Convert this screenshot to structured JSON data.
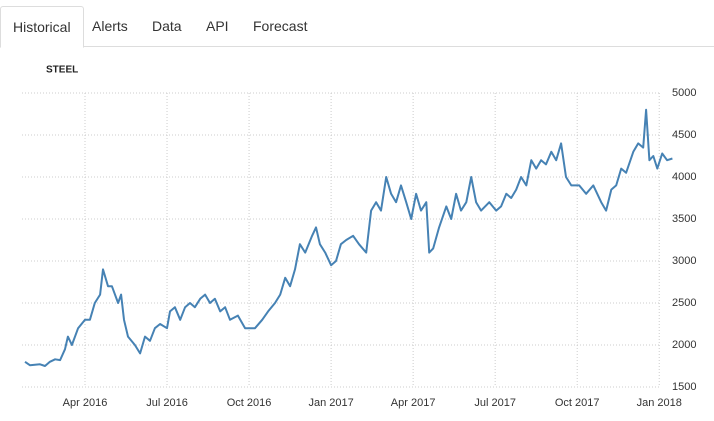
{
  "tabs": [
    "Historical",
    "Alerts",
    "Data",
    "API",
    "Forecast"
  ],
  "chart_data": {
    "type": "line",
    "title": "STEEL",
    "x": [
      2016.067,
      2016.082,
      2016.113,
      2016.128,
      2016.143,
      2016.159,
      2016.174,
      2016.189,
      2016.198,
      2016.21,
      2016.229,
      2016.25,
      2016.265,
      2016.28,
      2016.296,
      2016.305,
      2016.32,
      2016.332,
      2016.351,
      2016.36,
      2016.369,
      2016.381,
      2016.402,
      2016.418,
      2016.433,
      2016.448,
      2016.463,
      2016.479,
      2016.5,
      2016.509,
      2016.524,
      2016.54,
      2016.555,
      2016.57,
      2016.585,
      2016.601,
      2016.616,
      2016.631,
      2016.646,
      2016.662,
      2016.677,
      2016.692,
      2016.716,
      2016.738,
      2016.768,
      2016.79,
      2016.808,
      2016.829,
      2016.845,
      2016.86,
      2016.875,
      2016.89,
      2016.905,
      2016.921,
      2016.942,
      2016.954,
      2016.966,
      2016.982,
      2017.0,
      2017.015,
      2017.03,
      2017.046,
      2017.067,
      2017.085,
      2017.107,
      2017.122,
      2017.137,
      2017.152,
      2017.168,
      2017.183,
      2017.198,
      2017.213,
      2017.229,
      2017.244,
      2017.259,
      2017.274,
      2017.29,
      2017.299,
      2017.311,
      2017.329,
      2017.351,
      2017.366,
      2017.381,
      2017.396,
      2017.412,
      2017.427,
      2017.442,
      2017.457,
      2017.482,
      2017.503,
      2017.518,
      2017.534,
      2017.549,
      2017.564,
      2017.579,
      2017.595,
      2017.61,
      2017.625,
      2017.64,
      2017.655,
      2017.671,
      2017.686,
      2017.701,
      2017.716,
      2017.732,
      2017.756,
      2017.777,
      2017.799,
      2017.823,
      2017.838,
      2017.854,
      2017.869,
      2017.884,
      2017.899,
      2017.921,
      2017.936,
      2017.951,
      2017.96,
      2017.97,
      2017.982,
      2017.994,
      2018.009,
      2018.024,
      2018.04
    ],
    "series": [
      {
        "name": "STEEL",
        "color": "#4682b4",
        "values": [
          1800,
          1760,
          1770,
          1750,
          1800,
          1830,
          1820,
          1950,
          2100,
          2000,
          2200,
          2300,
          2300,
          2500,
          2600,
          2900,
          2700,
          2700,
          2500,
          2600,
          2300,
          2100,
          2000,
          1900,
          2100,
          2050,
          2200,
          2250,
          2200,
          2400,
          2450,
          2300,
          2450,
          2500,
          2450,
          2550,
          2600,
          2500,
          2550,
          2400,
          2450,
          2300,
          2350,
          2200,
          2200,
          2300,
          2400,
          2500,
          2600,
          2800,
          2700,
          2900,
          3200,
          3100,
          3300,
          3400,
          3200,
          3100,
          2950,
          3000,
          3200,
          3250,
          3300,
          3200,
          3100,
          3600,
          3700,
          3600,
          4000,
          3800,
          3700,
          3900,
          3700,
          3500,
          3800,
          3600,
          3700,
          3100,
          3150,
          3400,
          3650,
          3500,
          3800,
          3600,
          3700,
          4000,
          3700,
          3600,
          3700,
          3600,
          3650,
          3800,
          3750,
          3850,
          4000,
          3900,
          4200,
          4100,
          4200,
          4150,
          4300,
          4200,
          4400,
          4000,
          3900,
          3900,
          3800,
          3900,
          3700,
          3600,
          3850,
          3900,
          4100,
          4050,
          4300,
          4400,
          4350,
          4800,
          4200,
          4250,
          4100,
          4280,
          4200,
          4220
        ]
      }
    ],
    "xlim": [
      2016.058,
      2018.045
    ],
    "ylim": [
      1500,
      5000
    ],
    "xticks": [
      {
        "value": 2016.25,
        "label": "Apr 2016"
      },
      {
        "value": 2016.5,
        "label": "Jul 2016"
      },
      {
        "value": 2016.75,
        "label": "Oct 2016"
      },
      {
        "value": 2017.0,
        "label": "Jan 2017"
      },
      {
        "value": 2017.25,
        "label": "Apr 2017"
      },
      {
        "value": 2017.5,
        "label": "Jul 2017"
      },
      {
        "value": 2017.75,
        "label": "Oct 2017"
      },
      {
        "value": 2018.0,
        "label": "Jan 2018"
      }
    ],
    "yticks": [
      1500,
      2000,
      2500,
      3000,
      3500,
      4000,
      4500,
      5000
    ],
    "grid": true
  }
}
